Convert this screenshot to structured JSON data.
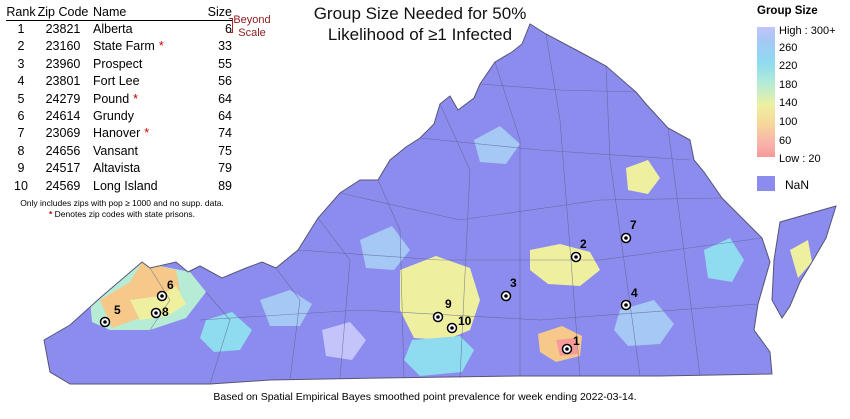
{
  "title_line1": "Group Size Needed for 50%",
  "title_line2": "Likelihood of ≥1 Infected",
  "table": {
    "headers": {
      "rank": "Rank",
      "zip": "Zip Code",
      "name": "Name",
      "size": "Size"
    },
    "rows": [
      {
        "rank": "1",
        "zip": "23821",
        "name": "Alberta",
        "size": "6",
        "prison": false
      },
      {
        "rank": "2",
        "zip": "23160",
        "name": "State Farm",
        "size": "33",
        "prison": true
      },
      {
        "rank": "3",
        "zip": "23960",
        "name": "Prospect",
        "size": "55",
        "prison": false
      },
      {
        "rank": "4",
        "zip": "23801",
        "name": "Fort Lee",
        "size": "56",
        "prison": false
      },
      {
        "rank": "5",
        "zip": "24279",
        "name": "Pound",
        "size": "64",
        "prison": true
      },
      {
        "rank": "6",
        "zip": "24614",
        "name": "Grundy",
        "size": "64",
        "prison": false
      },
      {
        "rank": "7",
        "zip": "23069",
        "name": "Hanover",
        "size": "74",
        "prison": true
      },
      {
        "rank": "8",
        "zip": "24656",
        "name": "Vansant",
        "size": "75",
        "prison": false
      },
      {
        "rank": "9",
        "zip": "24517",
        "name": "Altavista",
        "size": "79",
        "prison": false
      },
      {
        "rank": "10",
        "zip": "24569",
        "name": "Long Island",
        "size": "89",
        "prison": false
      }
    ],
    "prison_symbol": "*"
  },
  "beyond_scale": {
    "line1": "Beyond",
    "line2": "Scale"
  },
  "notes": {
    "line1": "Only includes zips with pop ≥ 1000 and no supp. data.",
    "line2_symbol": "*",
    "line2_text": "Denotes zip codes with state prisons."
  },
  "legend": {
    "title": "Group Size",
    "labels": [
      "High : 300+",
      "260",
      "220",
      "180",
      "140",
      "100",
      "60",
      "Low : 20"
    ],
    "nan_label": "NaN"
  },
  "footer": "Based on Spatial Empirical Bayes smoothed point prevalence for week ending 2022-03-14.",
  "colors": {
    "nan": "#8c8cee",
    "high": "#c4c4fb",
    "mid_blue": "#8fdbef",
    "mid_green": "#b6ecd6",
    "yellow": "#eef0a0",
    "orange": "#f6c98a",
    "low": "#f79a9a",
    "boundary": "#555577"
  },
  "markers": [
    {
      "label": "1",
      "rank": 1
    },
    {
      "label": "2",
      "rank": 2
    },
    {
      "label": "3",
      "rank": 3
    },
    {
      "label": "4",
      "rank": 4
    },
    {
      "label": "5",
      "rank": 5
    },
    {
      "label": "6",
      "rank": 6
    },
    {
      "label": "7",
      "rank": 7
    },
    {
      "label": "8",
      "rank": 8
    },
    {
      "label": "9",
      "rank": 9
    },
    {
      "label": "10",
      "rank": 10
    }
  ]
}
